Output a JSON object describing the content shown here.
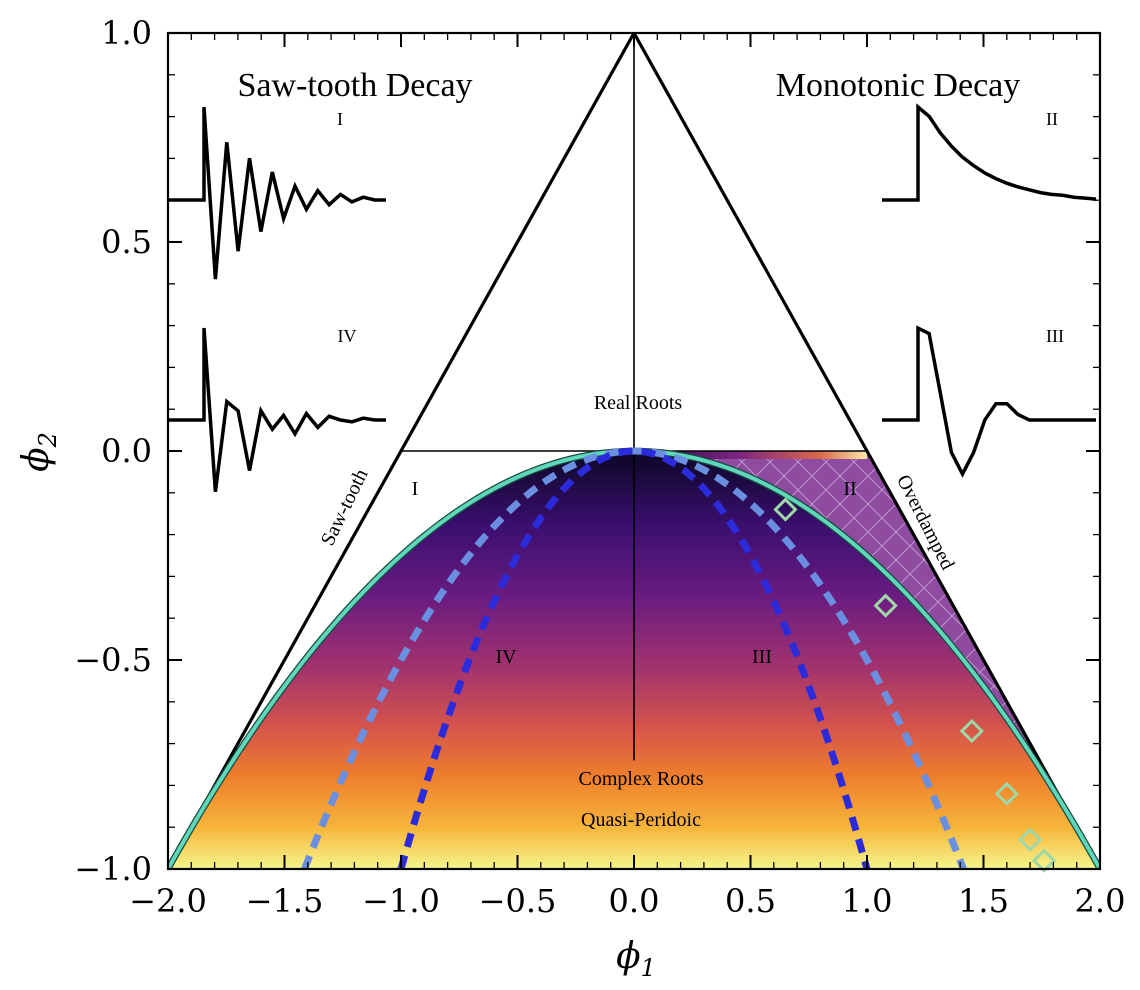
{
  "chart_data": {
    "type": "region-diagram",
    "title": "",
    "xlabel": "φ1",
    "ylabel": "φ2",
    "xlim": [
      -2.0,
      2.0
    ],
    "ylim": [
      -1.0,
      1.0
    ],
    "xticks": [
      "−2.0",
      "−1.5",
      "−1.0",
      "−0.5",
      "0.0",
      "0.5",
      "1.0",
      "1.5",
      "2.0"
    ],
    "xtick_values": [
      -2.0,
      -1.5,
      -1.0,
      -0.5,
      0.0,
      0.5,
      1.0,
      1.5,
      2.0
    ],
    "yticks": [
      "−1.0",
      "−0.5",
      "0.0",
      "0.5",
      "1.0"
    ],
    "ytick_values": [
      -1.0,
      -0.5,
      0.0,
      0.5,
      1.0
    ],
    "boundaries": {
      "triangle": [
        [
          -2,
          -1
        ],
        [
          0,
          1
        ],
        [
          2,
          -1
        ]
      ],
      "parabola": "phi2 = -phi1^2/4",
      "horizontal_line_y": 0,
      "vertical_line_x": 0
    },
    "labels": {
      "real_roots": "Real Roots",
      "complex_roots": "Complex Roots",
      "quasi_periodic": "Quasi-Peridoic",
      "saw_tooth": "Saw-tooth",
      "overdamped": "Overdamped",
      "region_I": "I",
      "region_II": "II",
      "region_III": "III",
      "region_IV": "IV"
    },
    "dashed_curves": [
      {
        "name": "light-blue-dashed",
        "color": "#6a8fe0",
        "k": 0.5,
        "formula": "phi2 = -phi1^2/(4*k)"
      },
      {
        "name": "dark-blue-dashed",
        "color": "#2b2bdc",
        "k": 0.25,
        "formula": "phi2 = -phi1^2/(4*k)"
      }
    ],
    "markers": [
      {
        "phi1": 0.65,
        "phi2": -0.14
      },
      {
        "phi1": 1.08,
        "phi2": -0.37
      },
      {
        "phi1": 1.45,
        "phi2": -0.67
      },
      {
        "phi1": 1.6,
        "phi2": -0.82
      },
      {
        "phi1": 1.7,
        "phi2": -0.93
      },
      {
        "phi1": 1.76,
        "phi2": -0.98
      }
    ],
    "insets": {
      "left_title": "Saw-tooth Decay",
      "right_title": "Monotonic Decay",
      "series": [
        {
          "label": "I",
          "values": [
            0,
            0,
            0,
            1.0,
            -0.85,
            0.62,
            -0.55,
            0.45,
            -0.34,
            0.3,
            -0.2,
            0.15,
            -0.1,
            0.1,
            -0.05,
            0.06,
            -0.02,
            0.03,
            0.0,
            0.0
          ]
        },
        {
          "label": "IV",
          "values": [
            0,
            0,
            0,
            1.0,
            -0.78,
            0.2,
            0.1,
            -0.55,
            0.1,
            -0.1,
            0.05,
            -0.15,
            0.07,
            -0.08,
            0.04,
            0.0,
            -0.02,
            0.02,
            0.0,
            0.0
          ]
        },
        {
          "label": "II",
          "values": [
            0,
            0,
            0,
            1.0,
            0.9,
            0.72,
            0.58,
            0.46,
            0.37,
            0.29,
            0.23,
            0.18,
            0.14,
            0.11,
            0.08,
            0.06,
            0.05,
            0.03,
            0.02,
            0.01
          ]
        },
        {
          "label": "III",
          "values": [
            0,
            0,
            0,
            0.85,
            0.8,
            0.25,
            -0.3,
            -0.5,
            -0.3,
            0.0,
            0.15,
            0.15,
            0.05,
            0.0,
            0.0,
            0.0,
            0.0,
            0.0,
            0.0,
            0.0
          ]
        }
      ]
    }
  },
  "colors": {
    "teal": "#5fd7bb",
    "light_blue": "#6a8fe0",
    "dark_blue": "#2b2bdc",
    "marker": "#9ed8a8",
    "overdamped": "#8e4ba0"
  }
}
